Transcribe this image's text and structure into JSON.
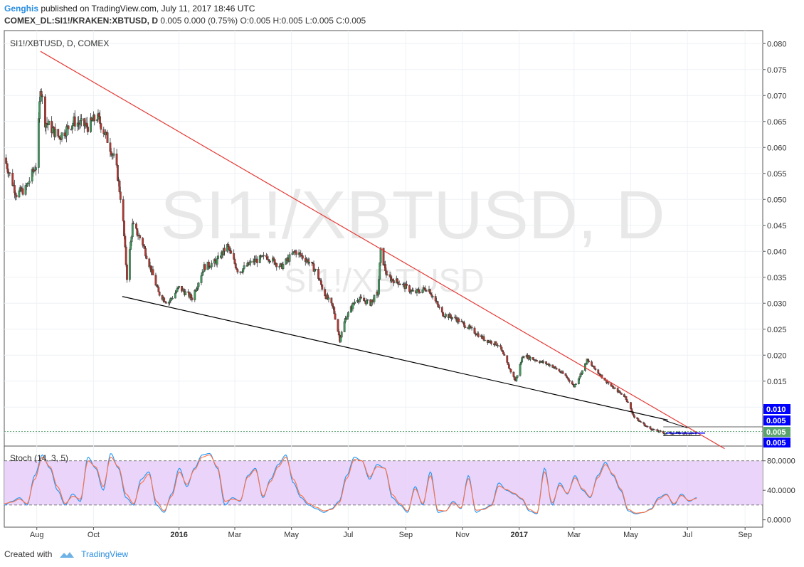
{
  "header": {
    "author": "Genghis",
    "published_text": "published on TradingView.com, July 11, 2017 18:46 UTC"
  },
  "symbol_line": {
    "symbol": "COMEX_DL:SI1!/KRAKEN:XBTUSD, D",
    "ohlc": "0.005 0.000 (0.75%) O:0.005 H:0.005 L:0.005 C:0.005"
  },
  "main_pane": {
    "label": "SI1!/XBTUSD, D, COMEX",
    "watermark_big": "SI1!/XBTUSD, D",
    "watermark_small": "SI1!/XBTUSD"
  },
  "stoch_pane": {
    "label": "Stoch (14, 3, 5)"
  },
  "footer": {
    "created_with": "Created with",
    "brand": "TradingView"
  },
  "colors": {
    "up_candle": "#3d9a5b",
    "down_candle": "#b5372f",
    "trendline_upper": "#e53935",
    "trendline_lower": "#000000",
    "stoch_k": "#2196f3",
    "stoch_d": "#ff7043",
    "stoch_band": "#e6ccf8",
    "price_tag": "#0000ff",
    "last_price_tag": "#5aa36e"
  },
  "chart_data": [
    {
      "type": "candlestick",
      "title": "SI1!/XBTUSD, D, COMEX",
      "y_axis_ticks": [
        0.08,
        0.075,
        0.07,
        0.065,
        0.06,
        0.055,
        0.05,
        0.045,
        0.04,
        0.035,
        0.03,
        0.025,
        0.02,
        0.015,
        0.01,
        0.005
      ],
      "y_tick_labels": [
        "0.080",
        "0.075",
        "0.070",
        "0.065",
        "0.060",
        "0.055",
        "0.050",
        "0.045",
        "0.040",
        "0.035",
        "0.030",
        "0.025",
        "0.020",
        "0.015",
        "0.010",
        "0.005"
      ],
      "ylim": [
        0.0025,
        0.0825
      ],
      "x_tick_labels": [
        "Aug",
        "Oct",
        "2016",
        "Mar",
        "May",
        "Jul",
        "Sep",
        "Nov",
        "2017",
        "Mar",
        "May",
        "Jul",
        "Sep"
      ],
      "x_tick_dates": [
        "2015-08-01",
        "2015-10-01",
        "2016-01-01",
        "2016-03-01",
        "2016-05-01",
        "2016-07-01",
        "2016-09-01",
        "2016-11-01",
        "2017-01-01",
        "2017-03-01",
        "2017-05-01",
        "2017-07-01",
        "2017-09-01"
      ],
      "price_path": [
        {
          "date": "2015-06-27",
          "value": 0.058
        },
        {
          "date": "2015-07-10",
          "value": 0.051
        },
        {
          "date": "2015-07-20",
          "value": 0.052
        },
        {
          "date": "2015-08-01",
          "value": 0.057
        },
        {
          "date": "2015-08-05",
          "value": 0.072
        },
        {
          "date": "2015-08-10",
          "value": 0.065
        },
        {
          "date": "2015-08-25",
          "value": 0.062
        },
        {
          "date": "2015-09-10",
          "value": 0.065
        },
        {
          "date": "2015-09-25",
          "value": 0.064
        },
        {
          "date": "2015-10-05",
          "value": 0.066
        },
        {
          "date": "2015-10-15",
          "value": 0.062
        },
        {
          "date": "2015-10-25",
          "value": 0.057
        },
        {
          "date": "2015-11-01",
          "value": 0.048
        },
        {
          "date": "2015-11-06",
          "value": 0.035
        },
        {
          "date": "2015-11-12",
          "value": 0.045
        },
        {
          "date": "2015-11-22",
          "value": 0.042
        },
        {
          "date": "2015-12-01",
          "value": 0.037
        },
        {
          "date": "2015-12-10",
          "value": 0.032
        },
        {
          "date": "2015-12-20",
          "value": 0.03
        },
        {
          "date": "2016-01-01",
          "value": 0.033
        },
        {
          "date": "2016-01-15",
          "value": 0.031
        },
        {
          "date": "2016-01-28",
          "value": 0.037
        },
        {
          "date": "2016-02-10",
          "value": 0.038
        },
        {
          "date": "2016-02-22",
          "value": 0.041
        },
        {
          "date": "2016-03-05",
          "value": 0.036
        },
        {
          "date": "2016-03-20",
          "value": 0.038
        },
        {
          "date": "2016-04-05",
          "value": 0.039
        },
        {
          "date": "2016-04-20",
          "value": 0.037
        },
        {
          "date": "2016-05-05",
          "value": 0.04
        },
        {
          "date": "2016-05-20",
          "value": 0.038
        },
        {
          "date": "2016-05-28",
          "value": 0.036
        },
        {
          "date": "2016-06-05",
          "value": 0.032
        },
        {
          "date": "2016-06-15",
          "value": 0.029
        },
        {
          "date": "2016-06-22",
          "value": 0.023
        },
        {
          "date": "2016-06-28",
          "value": 0.027
        },
        {
          "date": "2016-07-10",
          "value": 0.031
        },
        {
          "date": "2016-07-25",
          "value": 0.03
        },
        {
          "date": "2016-08-02",
          "value": 0.032
        },
        {
          "date": "2016-08-05",
          "value": 0.04
        },
        {
          "date": "2016-08-12",
          "value": 0.035
        },
        {
          "date": "2016-08-25",
          "value": 0.034
        },
        {
          "date": "2016-09-10",
          "value": 0.032
        },
        {
          "date": "2016-09-25",
          "value": 0.033
        },
        {
          "date": "2016-10-10",
          "value": 0.028
        },
        {
          "date": "2016-10-25",
          "value": 0.027
        },
        {
          "date": "2016-11-10",
          "value": 0.025
        },
        {
          "date": "2016-11-25",
          "value": 0.023
        },
        {
          "date": "2016-12-10",
          "value": 0.022
        },
        {
          "date": "2016-12-20",
          "value": 0.018
        },
        {
          "date": "2016-12-28",
          "value": 0.015
        },
        {
          "date": "2017-01-05",
          "value": 0.02
        },
        {
          "date": "2017-01-20",
          "value": 0.019
        },
        {
          "date": "2017-02-05",
          "value": 0.018
        },
        {
          "date": "2017-02-20",
          "value": 0.016
        },
        {
          "date": "2017-03-01",
          "value": 0.014
        },
        {
          "date": "2017-03-10",
          "value": 0.017
        },
        {
          "date": "2017-03-15",
          "value": 0.019
        },
        {
          "date": "2017-03-25",
          "value": 0.017
        },
        {
          "date": "2017-04-10",
          "value": 0.014
        },
        {
          "date": "2017-04-25",
          "value": 0.012
        },
        {
          "date": "2017-05-05",
          "value": 0.008
        },
        {
          "date": "2017-05-20",
          "value": 0.006
        },
        {
          "date": "2017-06-05",
          "value": 0.005
        },
        {
          "date": "2017-06-20",
          "value": 0.005
        },
        {
          "date": "2017-07-11",
          "value": 0.005
        }
      ],
      "trendline_upper": [
        {
          "date": "2015-08-05",
          "value": 0.0785
        },
        {
          "date": "2017-08-10",
          "value": 0.002
        }
      ],
      "trendline_lower": [
        {
          "date": "2015-11-01",
          "value": 0.0313
        },
        {
          "date": "2017-06-10",
          "value": 0.0075
        }
      ],
      "price_tags": [
        "0.010",
        "0.005",
        "0.005",
        "0.005"
      ],
      "last_price": 0.005
    },
    {
      "type": "line",
      "title": "Stoch (14, 3, 5)",
      "y_axis_ticks": [
        80,
        40,
        0
      ],
      "y_tick_labels": [
        "80.0000",
        "40.0000",
        "0.0000"
      ],
      "ylim": [
        -10,
        100
      ],
      "band": [
        20,
        80
      ],
      "series": [
        {
          "values": [
            20,
            25,
            30,
            20,
            60,
            88,
            70,
            40,
            20,
            35,
            25,
            85,
            70,
            40,
            90,
            70,
            30,
            20,
            55,
            65,
            20,
            10,
            35,
            70,
            45,
            70,
            88,
            90,
            70,
            20,
            30,
            25,
            60,
            70,
            30,
            55,
            75,
            88,
            50,
            30,
            20,
            15,
            10,
            15,
            25,
            60,
            85,
            80,
            55,
            75,
            70,
            30,
            20,
            10,
            45,
            20,
            65,
            10,
            12,
            25,
            15,
            60,
            10,
            15,
            20,
            50,
            40,
            35,
            28,
            12,
            8,
            70,
            20,
            50,
            35,
            60,
            40,
            30,
            60,
            78,
            60,
            40,
            12,
            8,
            10,
            15,
            30,
            35,
            20,
            35,
            25,
            30
          ]
        },
        {
          "values": [
            22,
            24,
            28,
            22,
            55,
            85,
            72,
            45,
            22,
            32,
            28,
            80,
            72,
            45,
            85,
            72,
            35,
            22,
            50,
            62,
            25,
            12,
            32,
            65,
            48,
            68,
            85,
            88,
            72,
            25,
            28,
            26,
            58,
            68,
            32,
            52,
            72,
            85,
            55,
            33,
            22,
            17,
            12,
            14,
            23,
            56,
            82,
            80,
            58,
            72,
            70,
            34,
            22,
            12,
            42,
            22,
            60,
            13,
            12,
            23,
            16,
            56,
            13,
            14,
            19,
            46,
            41,
            36,
            29,
            14,
            9,
            65,
            23,
            47,
            36,
            57,
            42,
            31,
            57,
            75,
            62,
            42,
            14,
            9,
            10,
            14,
            28,
            34,
            22,
            33,
            26,
            29
          ]
        }
      ]
    }
  ]
}
